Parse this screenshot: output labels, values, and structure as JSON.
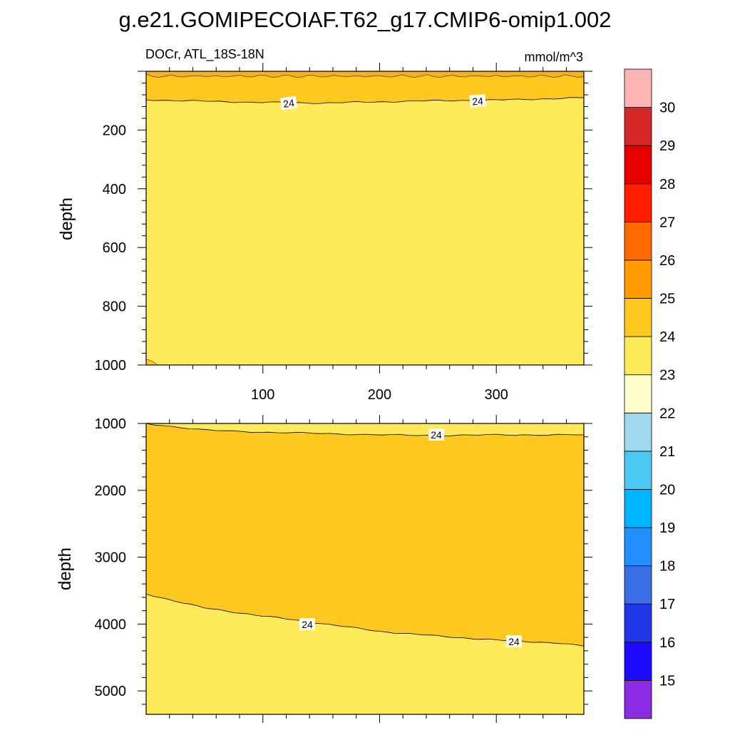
{
  "chart_data": [
    {
      "type": "heatmap",
      "title": "g.e21.GOMIPECOIAF.T62_g17.CMIP6-omip1.002",
      "left_label": "DOCr, ATL_18S-18N",
      "right_label": "mmol/m^3",
      "ylabel": "depth",
      "xlabel": "",
      "xlim": [
        0,
        375
      ],
      "ylim": [
        1000,
        0
      ],
      "x_ticks": [
        "100",
        "200",
        "300"
      ],
      "y_ticks": [
        "200",
        "400",
        "600",
        "800",
        "1000"
      ],
      "y_tick_values": [
        200,
        400,
        600,
        800,
        1000
      ],
      "contour_level": 24,
      "contour_labels": [
        "24",
        "24"
      ],
      "contour_24_depth": {
        "x": [
          0,
          50,
          100,
          150,
          200,
          250,
          300,
          350,
          375
        ],
        "depth": [
          97,
          102,
          106,
          108,
          104,
          100,
          98,
          93,
          90
        ]
      },
      "fill_above_contour": "24-25",
      "fill_below_contour": "23-24"
    },
    {
      "type": "heatmap",
      "ylabel": "depth",
      "xlabel": "",
      "xlim": [
        0,
        375
      ],
      "ylim": [
        5350,
        1000
      ],
      "y_ticks": [
        "1000",
        "2000",
        "3000",
        "4000",
        "5000"
      ],
      "y_tick_values": [
        1000,
        2000,
        3000,
        4000,
        5000
      ],
      "contour_level": 24,
      "contour_labels": [
        "24",
        "24",
        "24"
      ],
      "contour_24_upper_depth": {
        "x": [
          0,
          50,
          100,
          150,
          200,
          250,
          300,
          375
        ],
        "depth": [
          1000,
          1100,
          1130,
          1150,
          1170,
          1180,
          1170,
          1170
        ]
      },
      "contour_24_lower_depth": {
        "x": [
          0,
          50,
          100,
          150,
          200,
          250,
          300,
          350,
          375
        ],
        "depth": [
          3550,
          3760,
          3880,
          3990,
          4110,
          4180,
          4240,
          4280,
          4330
        ]
      },
      "fill_between_contours": "24-25",
      "fill_outside_contours": "23-24"
    }
  ],
  "colorbar": {
    "labels": [
      "15",
      "16",
      "17",
      "18",
      "19",
      "20",
      "21",
      "22",
      "23",
      "24",
      "25",
      "26",
      "27",
      "28",
      "29",
      "30"
    ],
    "colors": [
      "#8a2be2",
      "#1e0aff",
      "#2238e8",
      "#3a6ee6",
      "#2291ff",
      "#00b4ff",
      "#4cc8f4",
      "#a0d8ee",
      "#ffffcc",
      "#ffea5a",
      "#ffc81e",
      "#ff9c00",
      "#ff6a00",
      "#ff1e00",
      "#e60000",
      "#d42828",
      "#ffb4b4"
    ]
  }
}
